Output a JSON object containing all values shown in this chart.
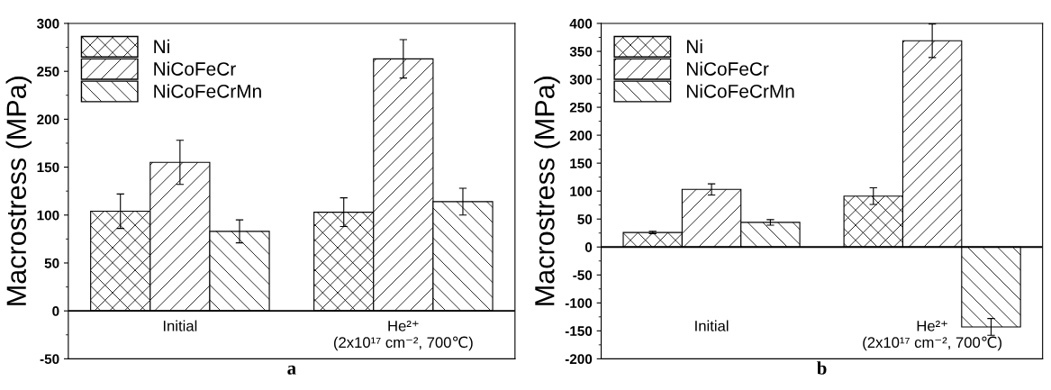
{
  "chart_data": [
    {
      "type": "bar",
      "xlabel": "a",
      "ylabel": "Macrostress (MPa)",
      "categories": [
        "Initial",
        "He²⁺\n(2x10¹⁷ cm⁻², 700℃)"
      ],
      "series": [
        {
          "name": "Ni",
          "color": "#000000",
          "values": [
            104,
            103
          ],
          "errors": [
            18,
            15
          ]
        },
        {
          "name": "NiCoFeCr",
          "color": "#000000",
          "values": [
            155,
            263
          ],
          "errors": [
            23,
            20
          ]
        },
        {
          "name": "NiCoFeCrMn",
          "color": "#000000",
          "values": [
            83,
            114
          ],
          "errors": [
            12,
            14
          ]
        }
      ],
      "ylim": [
        -50,
        300
      ],
      "yticks": [
        -50,
        0,
        50,
        100,
        150,
        200,
        250,
        300
      ],
      "ref_lines": [
        {
          "axis": "y",
          "value": 0,
          "color": "#000000"
        }
      ],
      "legend": "top left",
      "grid": false
    },
    {
      "type": "bar",
      "xlabel": "b",
      "ylabel": "Macrostress (MPa)",
      "categories": [
        "Initial",
        "He²⁺\n(2x10¹⁷ cm⁻², 700℃)"
      ],
      "series": [
        {
          "name": "Ni",
          "color": "#000000",
          "values": [
            26,
            91
          ],
          "errors": [
            2,
            15
          ]
        },
        {
          "name": "NiCoFeCr",
          "color": "#000000",
          "values": [
            103,
            369
          ],
          "errors": [
            10,
            30
          ]
        },
        {
          "name": "NiCoFeCrMn",
          "color": "#000000",
          "values": [
            44,
            -143
          ],
          "errors": [
            5,
            15
          ]
        }
      ],
      "ylim": [
        -200,
        400
      ],
      "yticks": [
        -200,
        -150,
        -100,
        -50,
        0,
        50,
        100,
        150,
        200,
        250,
        300,
        350,
        400
      ],
      "ref_lines": [
        {
          "axis": "y",
          "value": 0,
          "color": "#000000"
        }
      ],
      "legend": "top left",
      "grid": false
    }
  ]
}
